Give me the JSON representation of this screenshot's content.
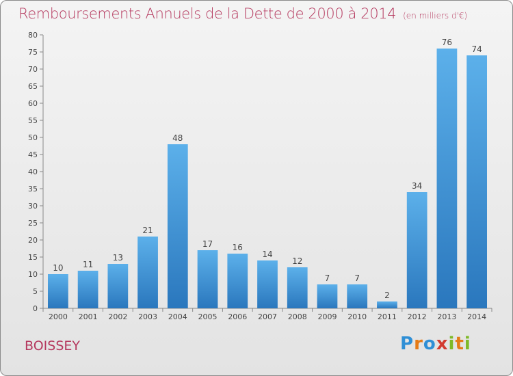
{
  "chart_data": {
    "type": "bar",
    "title": "Remboursements Annuels de la Dette de 2000 à 2014",
    "unit": "(en milliers d'€)",
    "categories": [
      "2000",
      "2001",
      "2002",
      "2003",
      "2004",
      "2005",
      "2006",
      "2007",
      "2008",
      "2009",
      "2010",
      "2011",
      "2012",
      "2013",
      "2014"
    ],
    "values": [
      10,
      11,
      13,
      21,
      48,
      17,
      16,
      14,
      12,
      7,
      7,
      2,
      34,
      76,
      74
    ],
    "ylim": [
      0,
      80
    ],
    "yticks": [
      0,
      5,
      10,
      15,
      20,
      25,
      30,
      35,
      40,
      45,
      50,
      55,
      60,
      65,
      70,
      75,
      80
    ],
    "grid": false,
    "bar_color": "#3d8fd4"
  },
  "commune": "BOISSEY",
  "brand": {
    "letters": [
      "P",
      "r",
      "o",
      "x",
      "i",
      "t",
      "i"
    ]
  }
}
